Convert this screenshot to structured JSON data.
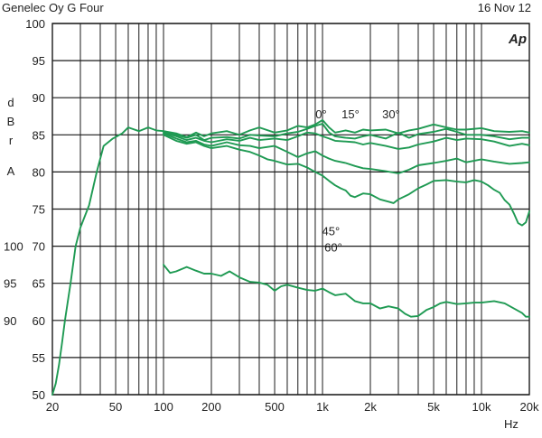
{
  "header": {
    "left_title": "Genelec Oy G Four",
    "right_date": "16 Nov 12",
    "logo": "Ap"
  },
  "colors": {
    "line": "#1f9a53",
    "grid": "#1a1a1a",
    "text": "#222222",
    "background": "#ffffff"
  },
  "chart_data": {
    "type": "line",
    "title": "Genelec Oy G Four",
    "date": "16 Nov 12",
    "xscale": "log",
    "xlim": [
      20,
      20000
    ],
    "xlabel": "Hz",
    "x_ticks": [
      {
        "v": 20,
        "label": "20"
      },
      {
        "v": 50,
        "label": "50"
      },
      {
        "v": 100,
        "label": "100"
      },
      {
        "v": 200,
        "label": "200"
      },
      {
        "v": 500,
        "label": "500"
      },
      {
        "v": 1000,
        "label": "1k"
      },
      {
        "v": 2000,
        "label": "2k"
      },
      {
        "v": 5000,
        "label": "5k"
      },
      {
        "v": 10000,
        "label": "10k"
      },
      {
        "v": 20000,
        "label": "20k"
      }
    ],
    "ylabel": "dBrA",
    "ylabel_letters": [
      "d",
      "B",
      "r",
      "A"
    ],
    "ylim": [
      50,
      100
    ],
    "y_ticks": [
      50,
      55,
      60,
      65,
      70,
      75,
      80,
      85,
      90,
      95,
      100
    ],
    "y_secondary_ticks": [
      {
        "at": 70,
        "label": "100"
      },
      {
        "at": 65,
        "label": "95"
      },
      {
        "at": 60,
        "label": "90"
      }
    ],
    "grid": true,
    "annotations": [
      {
        "text": "0°",
        "x": 980,
        "y": 87.2
      },
      {
        "text": "15°",
        "x": 1500,
        "y": 87.2
      },
      {
        "text": "30°",
        "x": 2700,
        "y": 87.2
      },
      {
        "text": "45°",
        "x": 1130,
        "y": 71.5
      },
      {
        "text": "60°",
        "x": 1170,
        "y": 69.3
      }
    ],
    "series": [
      {
        "name": "0°",
        "x": [
          20,
          21,
          22,
          23,
          24,
          26,
          28,
          30,
          34,
          38,
          42,
          48,
          55,
          60,
          70,
          80,
          90,
          100,
          120,
          140,
          160,
          180,
          200,
          250,
          300,
          350,
          400,
          500,
          600,
          700,
          800,
          900,
          1000,
          1100,
          1200,
          1400,
          1600,
          1800,
          2000,
          2500,
          3000,
          3500,
          4000,
          5000,
          6000,
          7000,
          8000,
          10000,
          12000,
          15000,
          18000,
          20000
        ],
        "y": [
          50,
          51.5,
          54,
          57,
          60,
          65,
          70,
          72.5,
          75.5,
          80,
          83.5,
          84.5,
          85.2,
          86,
          85.5,
          86,
          85.6,
          85.5,
          85.2,
          84.7,
          85.3,
          84.8,
          85.2,
          85.5,
          85,
          85.6,
          86,
          85.3,
          85.6,
          86.2,
          86,
          86.4,
          87,
          86,
          85.3,
          85.6,
          85.3,
          85.7,
          85.6,
          85.7,
          85.2,
          85.6,
          85.8,
          86.4,
          86,
          85.7,
          85.7,
          85.9,
          85.5,
          85.4,
          85.5,
          85.3
        ]
      },
      {
        "name": "15°",
        "x": [
          100,
          120,
          140,
          160,
          180,
          200,
          250,
          300,
          350,
          400,
          500,
          600,
          700,
          800,
          900,
          1000,
          1100,
          1200,
          1400,
          1600,
          1800,
          2000,
          2500,
          3000,
          3500,
          4000,
          5000,
          6000,
          7000,
          8000,
          10000,
          12000,
          15000,
          18000,
          20000
        ],
        "y": [
          85.5,
          85,
          84.6,
          85,
          84.3,
          84.6,
          84.7,
          84.5,
          85,
          84.9,
          84.8,
          85.2,
          85.4,
          85.8,
          86.2,
          86.5,
          85.3,
          84.8,
          84.6,
          84.5,
          84.8,
          85,
          84.5,
          85.3,
          84.6,
          85.1,
          85.4,
          85.8,
          85.4,
          85,
          85,
          84.8,
          84.4,
          84.6,
          84.6
        ]
      },
      {
        "name": "30°",
        "x": [
          100,
          120,
          140,
          160,
          180,
          200,
          250,
          300,
          350,
          400,
          500,
          600,
          700,
          800,
          900,
          1000,
          1100,
          1200,
          1400,
          1600,
          1800,
          2000,
          2500,
          3000,
          3500,
          4000,
          5000,
          6000,
          7000,
          8000,
          10000,
          12000,
          15000,
          18000,
          20000
        ],
        "y": [
          85.3,
          84.8,
          84.3,
          84.6,
          84.2,
          84,
          84.4,
          84.2,
          84.6,
          84.3,
          84.5,
          84.3,
          84.8,
          85.3,
          85.2,
          84.8,
          84.5,
          84.2,
          84.1,
          84,
          83.7,
          83.9,
          83.5,
          83.1,
          83.3,
          83.7,
          84.1,
          84.6,
          84.3,
          84.5,
          84.4,
          84.1,
          83.5,
          83.8,
          83.6
        ]
      },
      {
        "name": "45°",
        "x": [
          100,
          120,
          140,
          160,
          180,
          200,
          250,
          300,
          350,
          400,
          500,
          600,
          700,
          800,
          900,
          1000,
          1100,
          1200,
          1400,
          1600,
          1800,
          2000,
          2500,
          3000,
          3500,
          4000,
          5000,
          6000,
          7000,
          8000,
          10000,
          12000,
          15000,
          18000,
          20000
        ],
        "y": [
          85.2,
          84.5,
          84,
          84.2,
          83.7,
          83.5,
          84,
          83.6,
          83.5,
          83.2,
          83.5,
          82.7,
          82,
          82.5,
          82.8,
          82.2,
          81.8,
          81.5,
          81.2,
          80.8,
          80.5,
          80.4,
          80.1,
          79.8,
          80.3,
          80.9,
          81.2,
          81.5,
          81.8,
          81.3,
          81.7,
          81.4,
          81.1,
          81.2,
          81.3
        ]
      },
      {
        "name": "60°",
        "x": [
          100,
          120,
          140,
          160,
          180,
          200,
          250,
          300,
          350,
          400,
          450,
          500,
          600,
          700,
          800,
          900,
          1000,
          1100,
          1200,
          1300,
          1400,
          1500,
          1600,
          1800,
          2000,
          2300,
          2600,
          2800,
          3000,
          3500,
          4000,
          4500,
          5000,
          6000,
          7000,
          8000,
          9000,
          10000,
          11000,
          12000,
          13000,
          14000,
          15000,
          16000,
          17000,
          18000,
          19000,
          20000
        ],
        "y": [
          85,
          84.2,
          83.8,
          84,
          83.5,
          83.2,
          83.5,
          83,
          82.7,
          82.2,
          81.7,
          81.5,
          81,
          81.1,
          80.6,
          80,
          79.5,
          78.8,
          78.2,
          77.8,
          77.5,
          76.8,
          76.6,
          77.1,
          77,
          76.3,
          76,
          75.8,
          76.3,
          77,
          77.8,
          78.3,
          78.8,
          78.9,
          78.7,
          78.6,
          78.9,
          78.7,
          78.2,
          77.6,
          77.2,
          76.2,
          75.6,
          74.4,
          73.1,
          72.8,
          73.2,
          74.7
        ]
      },
      {
        "name": "",
        "x": [
          100,
          110,
          120,
          140,
          160,
          180,
          200,
          230,
          260,
          300,
          350,
          400,
          450,
          500,
          550,
          600,
          700,
          800,
          900,
          1000,
          1100,
          1200,
          1400,
          1600,
          1800,
          2000,
          2300,
          2600,
          3000,
          3300,
          3600,
          4000,
          4500,
          5000,
          5500,
          6000,
          7000,
          8000,
          9000,
          10000,
          12000,
          14000,
          16000,
          18000,
          19000,
          20000
        ],
        "y": [
          67.5,
          66.4,
          66.6,
          67.2,
          66.7,
          66.3,
          66.3,
          66,
          66.6,
          65.8,
          65.2,
          65.1,
          64.8,
          64,
          64.6,
          64.8,
          64.4,
          64.1,
          64,
          64.3,
          63.8,
          63.4,
          63.6,
          62.6,
          62.3,
          62.3,
          61.6,
          61.9,
          61.6,
          60.9,
          60.5,
          60.6,
          61.4,
          61.8,
          62.3,
          62.5,
          62.2,
          62.3,
          62.4,
          62.4,
          62.6,
          62.3,
          61.6,
          61,
          60.5,
          60.5
        ]
      }
    ]
  }
}
